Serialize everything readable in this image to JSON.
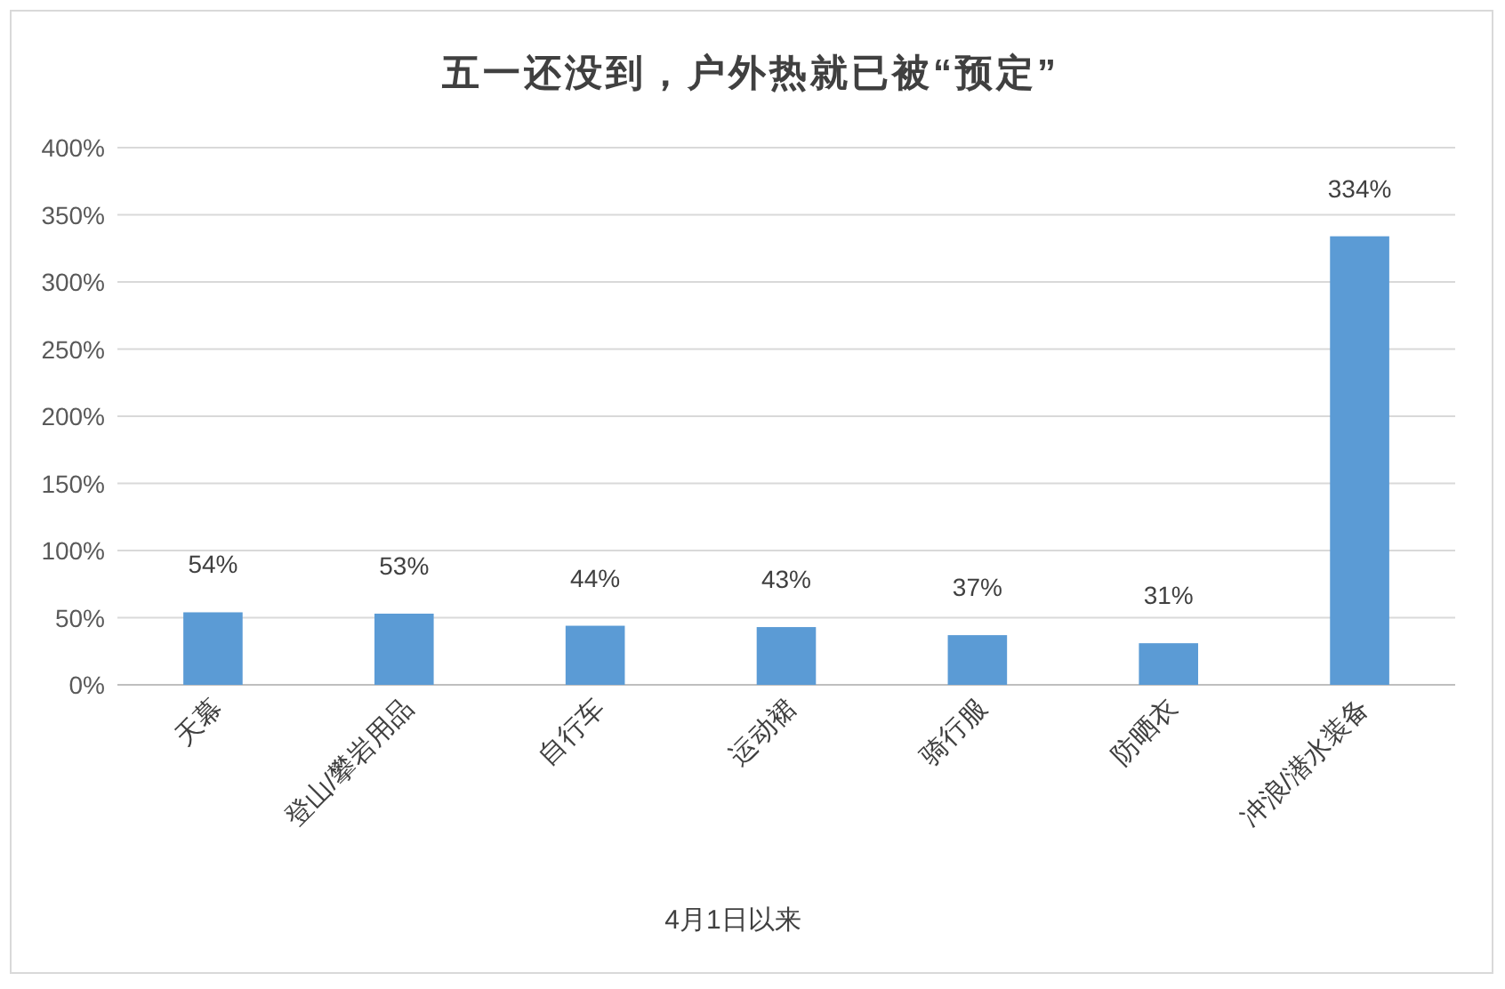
{
  "chart_data": {
    "type": "bar",
    "title": "五一还没到，户外热就已被“预定”",
    "xlabel": "4月1日以来",
    "categories": [
      "天幕",
      "登山/攀岩用品",
      "自行车",
      "运动裙",
      "骑行服",
      "防晒衣",
      "冲浪/潜水装备"
    ],
    "values": [
      54,
      53,
      44,
      43,
      37,
      31,
      334
    ],
    "value_labels": [
      "54%",
      "53%",
      "44%",
      "43%",
      "37%",
      "31%",
      "334%"
    ],
    "color": "#5b9bd5",
    "ylim": [
      0,
      400
    ],
    "yticks": [
      {
        "value": 0,
        "label": "0%"
      },
      {
        "value": 50,
        "label": "50%"
      },
      {
        "value": 100,
        "label": "100%"
      },
      {
        "value": 150,
        "label": "150%"
      },
      {
        "value": 200,
        "label": "200%"
      },
      {
        "value": 250,
        "label": "250%"
      },
      {
        "value": 300,
        "label": "300%"
      },
      {
        "value": 350,
        "label": "350%"
      },
      {
        "value": 400,
        "label": "400%"
      }
    ],
    "grid": "y"
  }
}
